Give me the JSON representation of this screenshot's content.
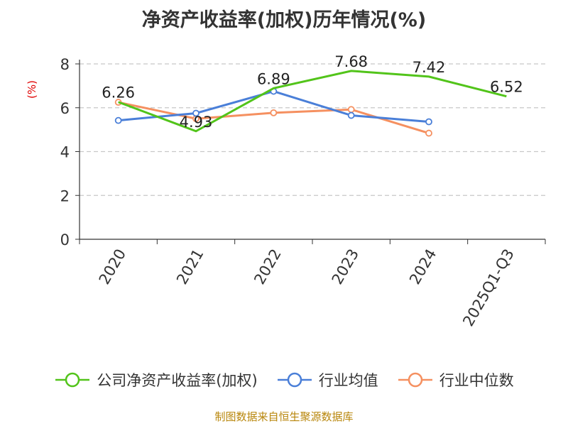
{
  "title": "净资产收益率(加权)历年情况(%)",
  "source": "制图数据来自恒生聚源数据库",
  "chart_data": {
    "type": "line",
    "categories": [
      "2020",
      "2021",
      "2022",
      "2023",
      "2024",
      "2025Q1-Q3"
    ],
    "ylabel": "(%)",
    "ylim": [
      0,
      8
    ],
    "yticks": [
      0,
      2,
      4,
      6,
      8
    ],
    "grid": true,
    "legend_position": "bottom",
    "series": [
      {
        "name": "公司净资产收益率(加权)",
        "color": "#52c41a",
        "values": [
          6.26,
          4.93,
          6.89,
          7.68,
          7.42,
          6.52
        ],
        "labels": [
          "6.26",
          "4.93",
          "6.89",
          "7.68",
          "7.42",
          "6.52"
        ]
      },
      {
        "name": "行业均值",
        "color": "#4a7fd8",
        "values": [
          5.42,
          5.75,
          6.75,
          5.65,
          5.36,
          null
        ]
      },
      {
        "name": "行业中位数",
        "color": "#f59060",
        "values": [
          6.25,
          5.5,
          5.77,
          5.92,
          4.84,
          null
        ]
      }
    ]
  }
}
